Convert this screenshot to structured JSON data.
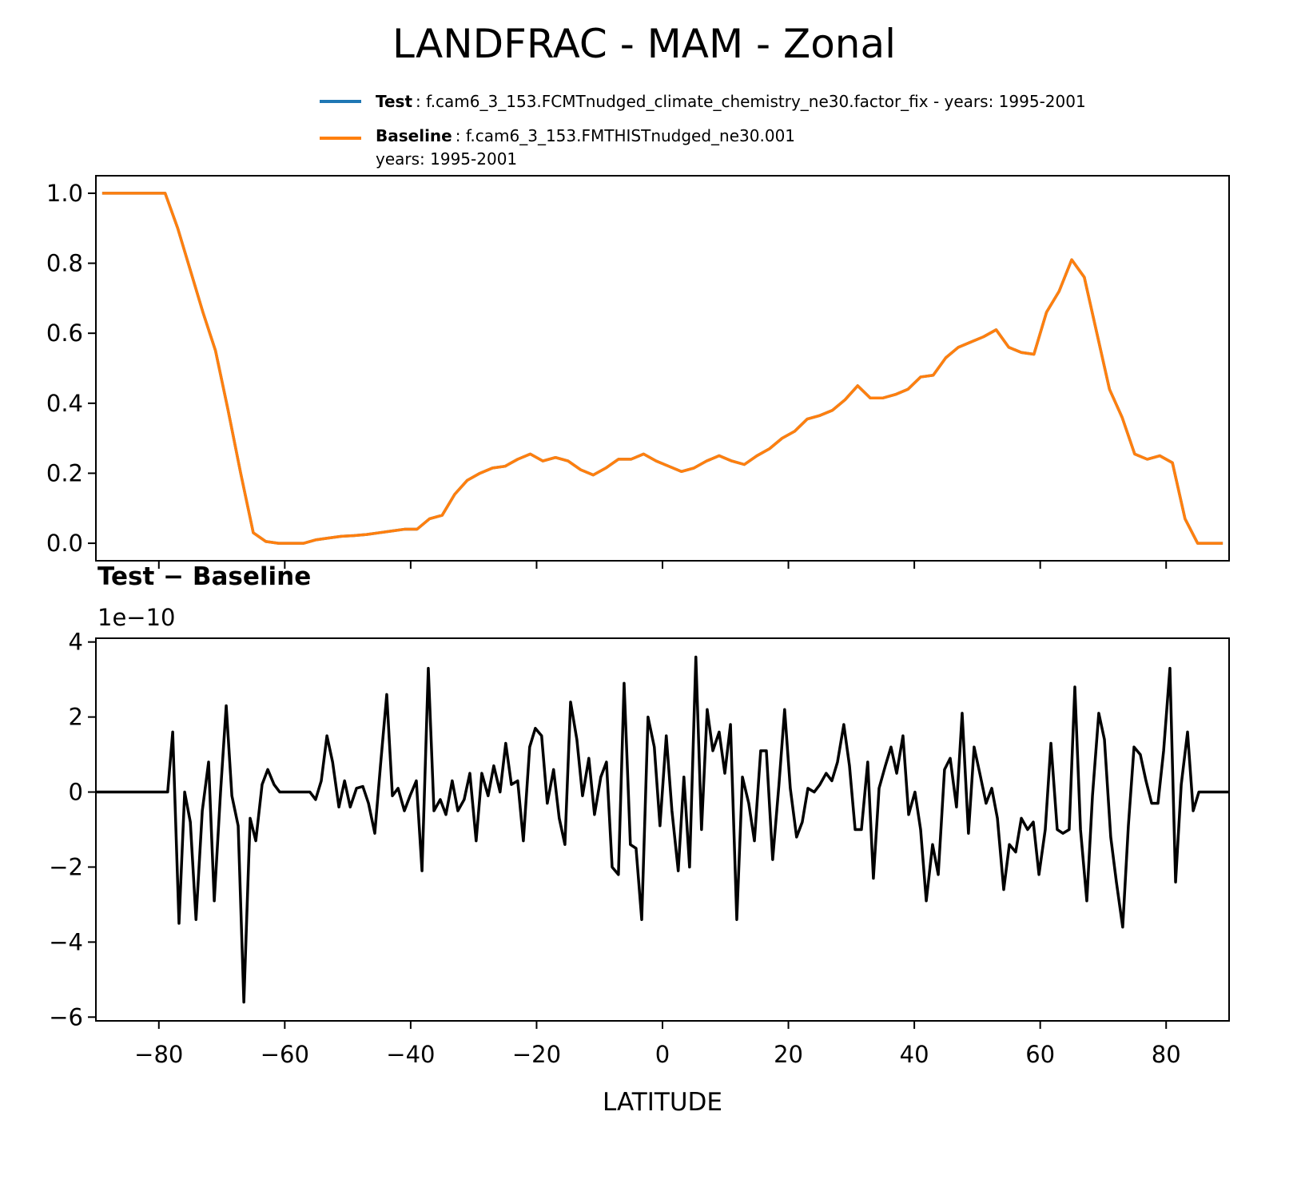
{
  "title": "LANDFRAC - MAM - Zonal",
  "chart_data": [
    {
      "type": "line",
      "x": [
        -89,
        -87,
        -85,
        -83,
        -81,
        -79,
        -77,
        -75,
        -73,
        -71,
        -69,
        -67,
        -65,
        -63,
        -61,
        -59,
        -57,
        -55,
        -53,
        -51,
        -49,
        -47,
        -45,
        -43,
        -41,
        -39,
        -37,
        -35,
        -33,
        -31,
        -29,
        -27,
        -25,
        -23,
        -21,
        -19,
        -17,
        -15,
        -13,
        -11,
        -9,
        -7,
        -5,
        -3,
        -1,
        1,
        3,
        5,
        7,
        9,
        11,
        13,
        15,
        17,
        19,
        21,
        23,
        25,
        27,
        29,
        31,
        33,
        35,
        37,
        39,
        41,
        43,
        45,
        47,
        49,
        51,
        53,
        55,
        57,
        59,
        61,
        63,
        65,
        67,
        69,
        71,
        73,
        75,
        77,
        79,
        81,
        83,
        85,
        87,
        89
      ],
      "series": [
        {
          "name": "Test",
          "description": ": f.cam6_3_153.FCMTnudged_climate_chemistry_ne30.factor_fix - years: 1995-2001",
          "color": "#1f77b4",
          "values": [
            1,
            1,
            1,
            1,
            1,
            1,
            0.9,
            0.78,
            0.66,
            0.55,
            0.38,
            0.2,
            0.03,
            0.005,
            0,
            0,
            0,
            0.01,
            0.015,
            0.02,
            0.022,
            0.025,
            0.03,
            0.035,
            0.04,
            0.04,
            0.07,
            0.08,
            0.14,
            0.18,
            0.2,
            0.215,
            0.22,
            0.24,
            0.255,
            0.235,
            0.245,
            0.235,
            0.21,
            0.195,
            0.215,
            0.24,
            0.24,
            0.255,
            0.235,
            0.22,
            0.205,
            0.215,
            0.235,
            0.25,
            0.235,
            0.225,
            0.25,
            0.27,
            0.3,
            0.32,
            0.355,
            0.365,
            0.38,
            0.41,
            0.45,
            0.415,
            0.415,
            0.425,
            0.44,
            0.475,
            0.48,
            0.53,
            0.56,
            0.575,
            0.59,
            0.61,
            0.56,
            0.545,
            0.54,
            0.66,
            0.72,
            0.81,
            0.76,
            0.6,
            0.44,
            0.36,
            0.255,
            0.24,
            0.25,
            0.23,
            0.07,
            0.0,
            0,
            0
          ]
        },
        {
          "name": "Baseline",
          "description": [
            ": f.cam6_3_153.FMTHISTnudged_ne30.001",
            "years: 1995-2001"
          ],
          "color": "#ff7f0e",
          "values": [
            1,
            1,
            1,
            1,
            1,
            1,
            0.9,
            0.78,
            0.66,
            0.55,
            0.38,
            0.2,
            0.03,
            0.005,
            0,
            0,
            0,
            0.01,
            0.015,
            0.02,
            0.022,
            0.025,
            0.03,
            0.035,
            0.04,
            0.04,
            0.07,
            0.08,
            0.14,
            0.18,
            0.2,
            0.215,
            0.22,
            0.24,
            0.255,
            0.235,
            0.245,
            0.235,
            0.21,
            0.195,
            0.215,
            0.24,
            0.24,
            0.255,
            0.235,
            0.22,
            0.205,
            0.215,
            0.235,
            0.25,
            0.235,
            0.225,
            0.25,
            0.27,
            0.3,
            0.32,
            0.355,
            0.365,
            0.38,
            0.41,
            0.45,
            0.415,
            0.415,
            0.425,
            0.44,
            0.475,
            0.48,
            0.53,
            0.56,
            0.575,
            0.59,
            0.61,
            0.56,
            0.545,
            0.54,
            0.66,
            0.72,
            0.81,
            0.76,
            0.6,
            0.44,
            0.36,
            0.255,
            0.24,
            0.25,
            0.23,
            0.07,
            0.0,
            0,
            0
          ]
        }
      ],
      "xlim": [
        -90,
        90
      ],
      "xticks": [
        -80,
        -60,
        -40,
        -20,
        0,
        20,
        40,
        60,
        80
      ],
      "ylim": [
        -0.05,
        1.05
      ],
      "yticks": [
        {
          "value": 0,
          "label": "0.0"
        },
        {
          "value": 0.2,
          "label": "0.2"
        },
        {
          "value": 0.4,
          "label": "0.4"
        },
        {
          "value": 0.6,
          "label": "0.6"
        },
        {
          "value": 0.8,
          "label": "0.8"
        },
        {
          "value": 1,
          "label": "1.0"
        }
      ]
    },
    {
      "type": "line",
      "title": "Test − Baseline",
      "offset_label": "1e−10",
      "xlabel": "LATITUDE",
      "x": [
        -90,
        -78.6,
        -77.8,
        -76.8,
        -75.9,
        -75.0,
        -74.1,
        -73.1,
        -72.1,
        -71.2,
        -70.2,
        -69.3,
        -68.4,
        -67.4,
        -66.5,
        -65.5,
        -64.6,
        -63.6,
        -62.7,
        -61.7,
        -60.8,
        -56.0,
        -55.1,
        -54.2,
        -53.3,
        -52.4,
        -51.4,
        -50.5,
        -49.6,
        -48.6,
        -47.6,
        -46.7,
        -45.7,
        -44.8,
        -43.8,
        -42.9,
        -42.0,
        -41.0,
        -40.1,
        -39.1,
        -38.2,
        -37.2,
        -36.3,
        -35.3,
        -34.4,
        -33.4,
        -32.5,
        -31.5,
        -30.6,
        -29.6,
        -28.7,
        -27.7,
        -26.8,
        -25.8,
        -24.9,
        -24.0,
        -23.0,
        -22.1,
        -21.1,
        -20.2,
        -19.2,
        -18.3,
        -17.3,
        -16.4,
        -15.5,
        -14.6,
        -13.6,
        -12.7,
        -11.7,
        -10.8,
        -9.8,
        -8.9,
        -8.0,
        -7.0,
        -6.1,
        -5.1,
        -4.2,
        -3.3,
        -2.3,
        -1.3,
        -0.4,
        0.6,
        1.5,
        2.5,
        3.4,
        4.3,
        5.3,
        6.2,
        7.1,
        8.0,
        9.0,
        9.9,
        10.8,
        11.8,
        12.7,
        13.7,
        14.6,
        15.6,
        16.5,
        17.5,
        18.5,
        19.4,
        20.3,
        21.3,
        22.2,
        23.1,
        24.1,
        25.0,
        26.0,
        26.9,
        27.8,
        28.8,
        29.7,
        30.6,
        31.6,
        32.6,
        33.5,
        34.4,
        35.4,
        36.3,
        37.2,
        38.2,
        39.1,
        40.1,
        41.0,
        41.9,
        42.9,
        43.8,
        44.8,
        45.7,
        46.7,
        47.6,
        48.6,
        49.5,
        50.4,
        51.4,
        52.3,
        53.2,
        54.2,
        55.1,
        56.1,
        57.0,
        58.0,
        58.9,
        59.8,
        60.8,
        61.7,
        62.7,
        63.6,
        64.6,
        65.5,
        66.4,
        67.4,
        68.3,
        69.3,
        70.2,
        71.2,
        72.1,
        73.1,
        74.0,
        74.9,
        75.9,
        76.8,
        77.7,
        78.7,
        79.6,
        80.6,
        81.5,
        82.4,
        83.4,
        84.3,
        85.2,
        90.0
      ],
      "series": [
        {
          "color": "#000000",
          "values": [
            0,
            0,
            1.6,
            -3.5,
            0,
            -0.8,
            -3.4,
            -0.5,
            0.8,
            -2.9,
            0,
            2.3,
            -0.1,
            -0.9,
            -5.6,
            -0.7,
            -1.3,
            0.2,
            0.6,
            0.2,
            0,
            0,
            -0.2,
            0.3,
            1.5,
            0.8,
            -0.4,
            0.3,
            -0.4,
            0.1,
            0.15,
            -0.3,
            -1.1,
            0.7,
            2.6,
            -0.1,
            0.1,
            -0.5,
            -0.1,
            0.3,
            -2.1,
            3.3,
            -0.5,
            -0.2,
            -0.6,
            0.3,
            -0.5,
            -0.2,
            0.5,
            -1.3,
            0.5,
            -0.1,
            0.7,
            0,
            1.3,
            0.2,
            0.3,
            -1.3,
            1.2,
            1.7,
            1.5,
            -0.3,
            0.6,
            -0.7,
            -1.4,
            2.4,
            1.4,
            -0.1,
            0.9,
            -0.6,
            0.4,
            0.8,
            -2,
            -2.2,
            2.9,
            -1.4,
            -1.5,
            -3.4,
            2,
            1.2,
            -0.9,
            1.5,
            -0.5,
            -2.1,
            0.4,
            -2,
            3.6,
            -1,
            2.2,
            1.1,
            1.6,
            0.5,
            1.8,
            -3.4,
            0.4,
            -0.3,
            -1.3,
            1.1,
            1.1,
            -1.8,
            0.2,
            2.2,
            0.1,
            -1.2,
            -0.8,
            0.1,
            0,
            0.2,
            0.5,
            0.3,
            0.8,
            1.8,
            0.7,
            -1,
            -1,
            0.8,
            -2.3,
            0.1,
            0.7,
            1.2,
            0.5,
            1.5,
            -0.6,
            0,
            -1,
            -2.9,
            -1.4,
            -2.2,
            0.6,
            0.9,
            -0.4,
            2.1,
            -1.1,
            1.2,
            0.5,
            -0.3,
            0.1,
            -0.7,
            -2.6,
            -1.4,
            -1.6,
            -0.7,
            -1,
            -0.8,
            -2.2,
            -1,
            1.3,
            -1,
            -1.1,
            -1,
            2.8,
            -1,
            -2.9,
            -0.1,
            2.1,
            1.4,
            -1.2,
            -2.4,
            -3.6,
            -0.9,
            1.2,
            1,
            0.3,
            -0.3,
            -0.3,
            1.1,
            3.3,
            -2.4,
            0.2,
            1.6,
            -0.5,
            0,
            0
          ]
        }
      ],
      "xlim": [
        -90,
        90
      ],
      "xticks": [
        {
          "value": -80,
          "label": "−80"
        },
        {
          "value": -60,
          "label": "−60"
        },
        {
          "value": -40,
          "label": "−40"
        },
        {
          "value": -20,
          "label": "−20"
        },
        0,
        20,
        40,
        60,
        80
      ],
      "ylim": [
        -6.1,
        4.1
      ],
      "yticks": [
        {
          "value": -6,
          "label": "−6"
        },
        {
          "value": -4,
          "label": "−4"
        },
        {
          "value": -2,
          "label": "−2"
        },
        0,
        2,
        4
      ]
    }
  ]
}
